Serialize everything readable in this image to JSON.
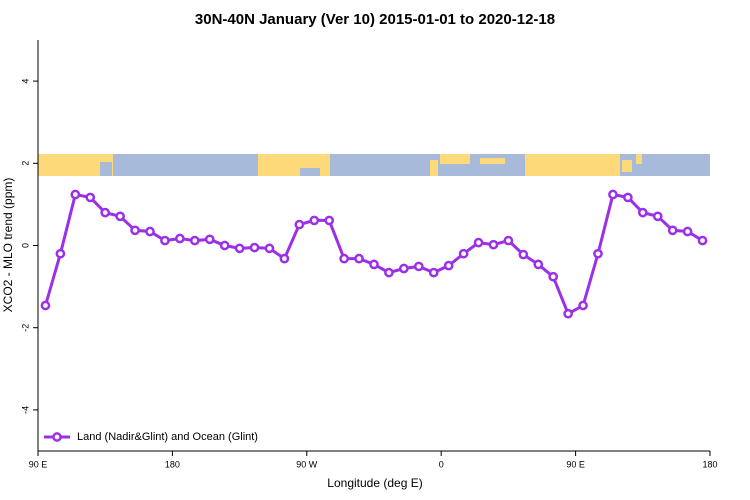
{
  "chart_data": {
    "type": "line",
    "title": "30N-40N January (Ver 10)   2015-01-01 to 2020-12-18",
    "x_label": "Longitude (deg E)",
    "y_label": "XCO2 - MLO trend (ppm)",
    "x": [
      95,
      105,
      115,
      125,
      135,
      145,
      155,
      165,
      175,
      185,
      195,
      205,
      215,
      225,
      235,
      245,
      255,
      265,
      275,
      285,
      295,
      305,
      315,
      325,
      335,
      345,
      355,
      365,
      375,
      385,
      395,
      405,
      415,
      425,
      435,
      445,
      455,
      465,
      475,
      485,
      495,
      505,
      515,
      525,
      535
    ],
    "series": [
      {
        "name": "Land (Nadir&Glint) and Ocean (Glint)",
        "color": "#9b30e8",
        "values": [
          -1.46,
          -0.2,
          1.24,
          1.17,
          0.8,
          0.71,
          0.37,
          0.34,
          0.12,
          0.17,
          0.12,
          0.15,
          0.0,
          -0.07,
          -0.05,
          -0.07,
          -0.32,
          0.51,
          0.61,
          0.61,
          -0.32,
          -0.32,
          -0.46,
          -0.66,
          -0.56,
          -0.51,
          -0.66,
          -0.49,
          -0.2,
          0.07,
          0.02,
          0.12,
          -0.22,
          -0.46,
          -0.76,
          -1.66,
          -1.46,
          -0.2,
          1.24,
          1.17,
          0.8,
          0.71,
          0.37,
          0.34,
          0.12
        ]
      }
    ],
    "xlim": [
      90,
      540
    ],
    "xticks": [
      {
        "value": 90,
        "label": "90 E"
      },
      180,
      {
        "value": 270,
        "label": "90 W"
      },
      0,
      {
        "value": 450,
        "label": "90 E"
      },
      {
        "value": 540,
        "label": "180"
      }
    ],
    "ylim": [
      -5,
      5
    ],
    "yticks": [
      -4,
      -2,
      0,
      2,
      4
    ],
    "legend": "bottom-left"
  }
}
